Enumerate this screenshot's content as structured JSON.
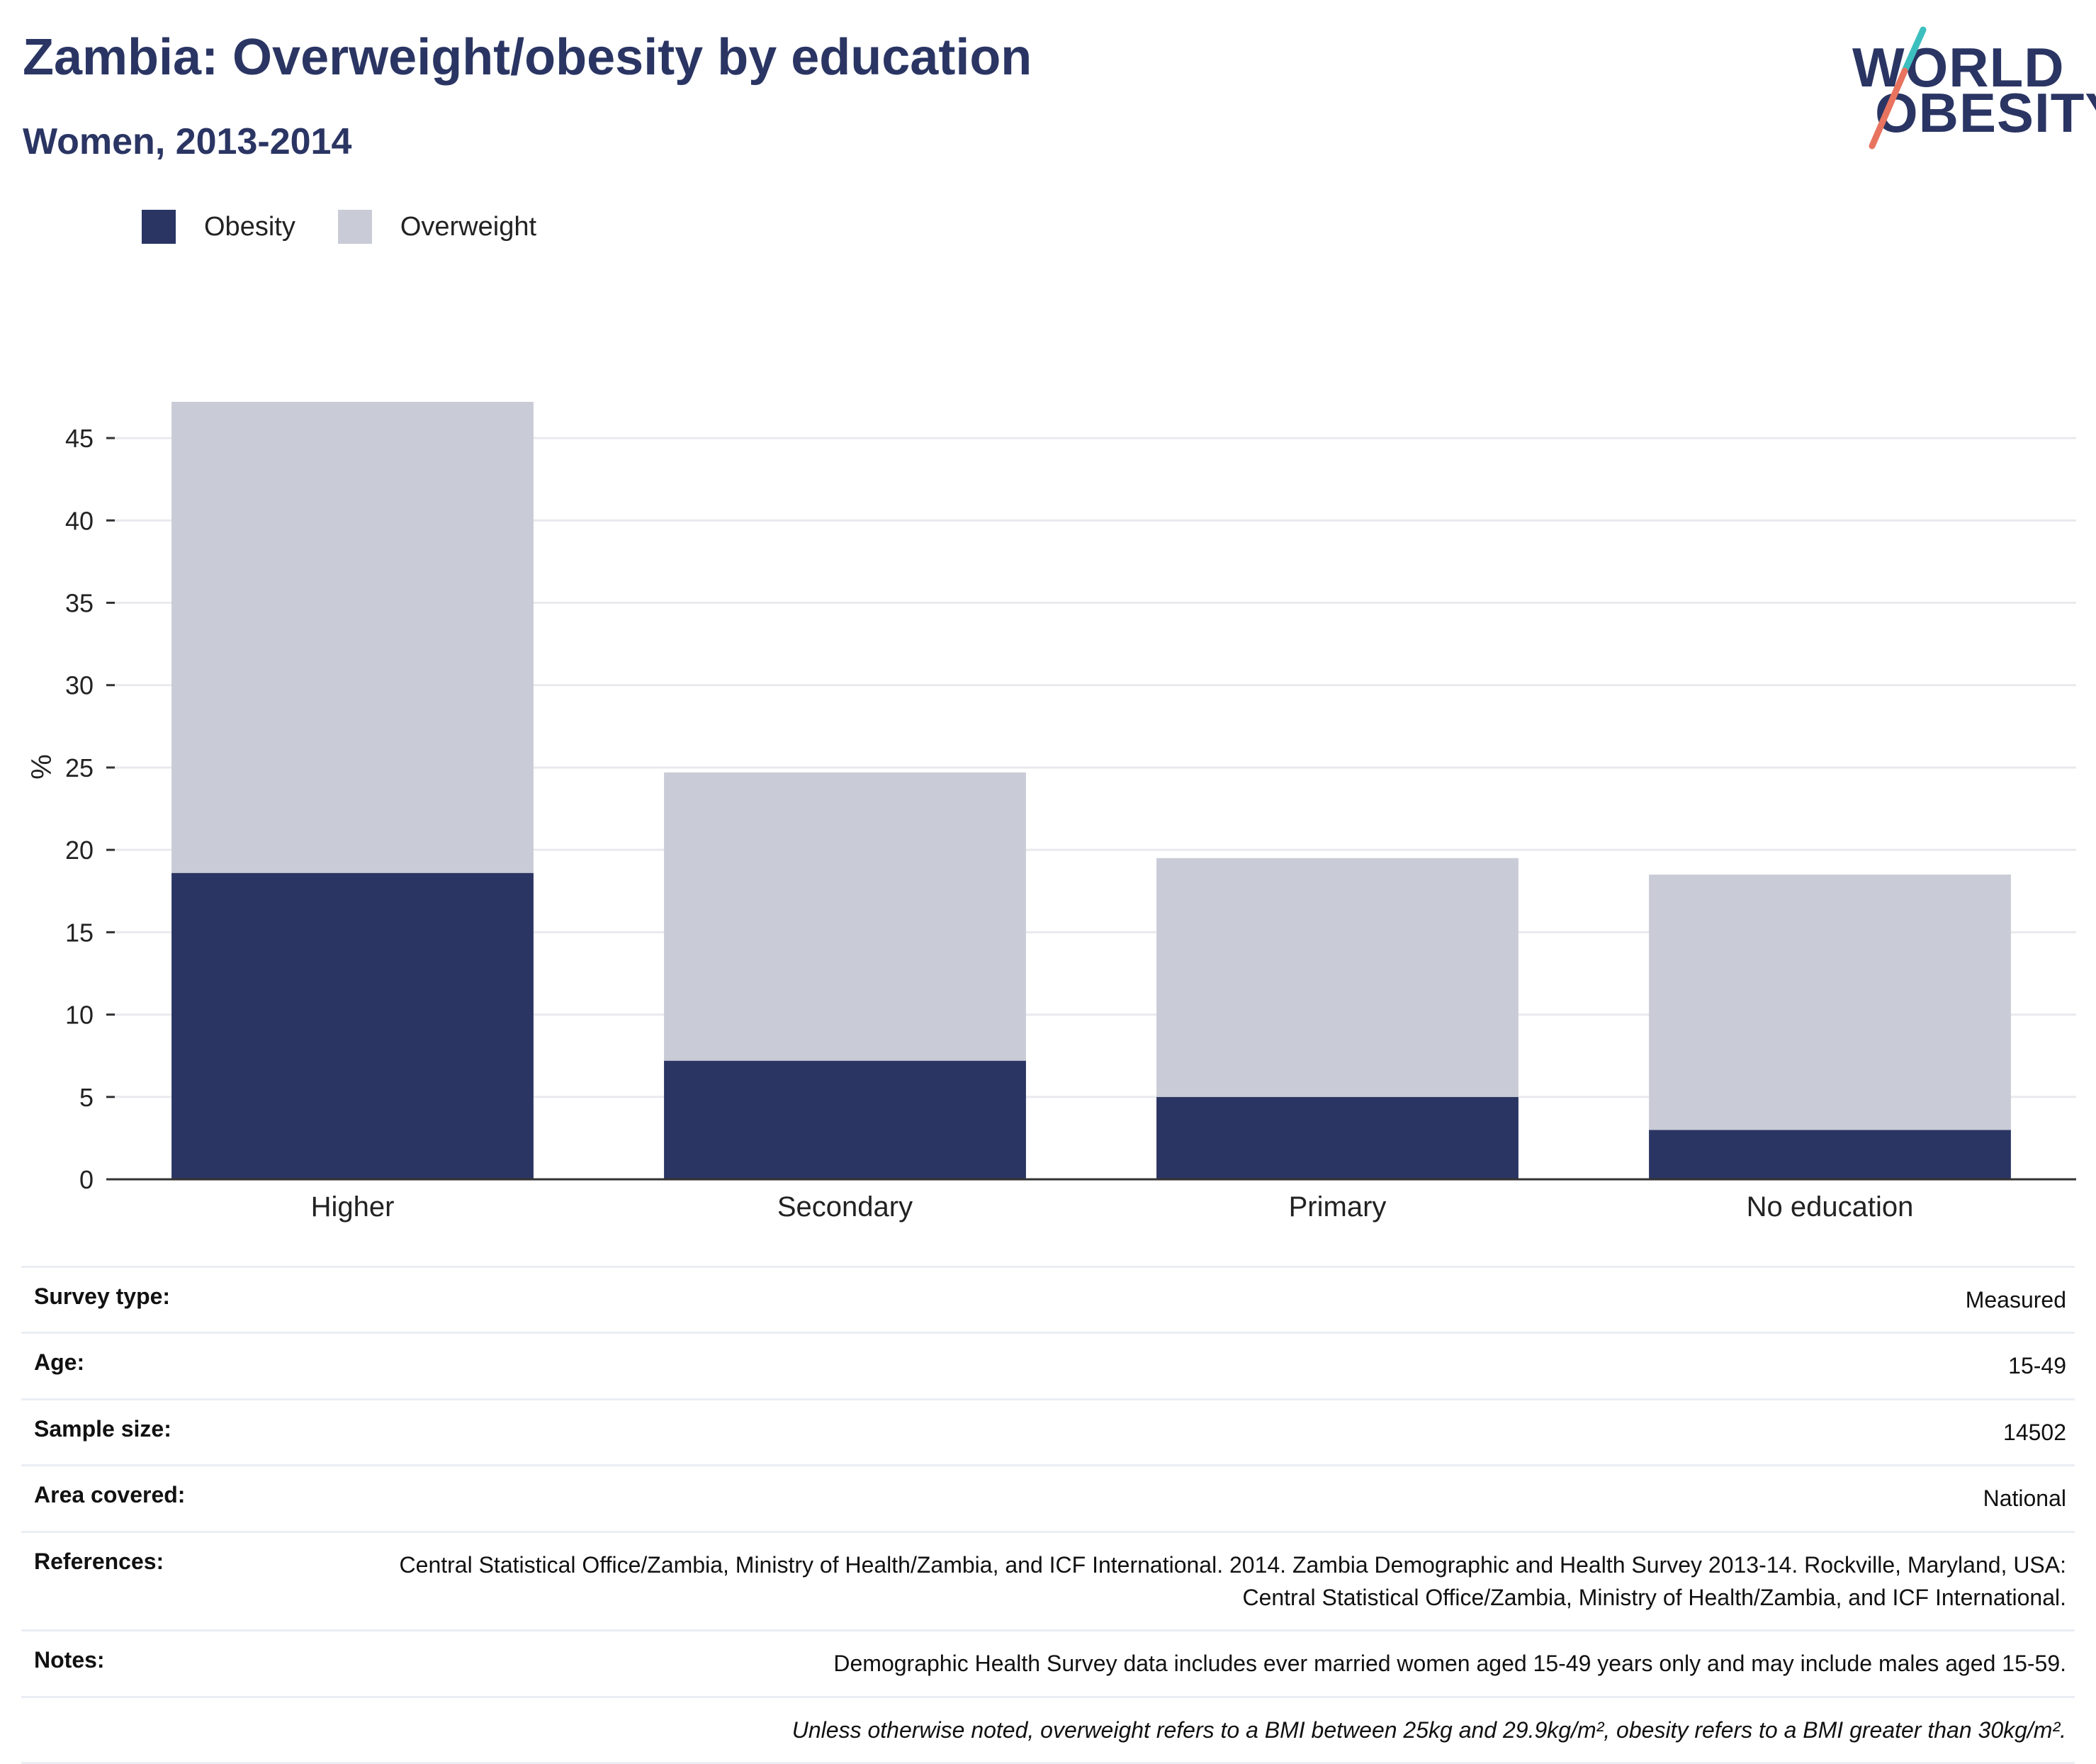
{
  "header": {
    "title": "Zambia: Overweight/obesity by education",
    "subtitle": "Women, 2013-2014"
  },
  "logo": {
    "line1": "WORLD",
    "line2": "OBESITY"
  },
  "colors": {
    "obesity": "#2a3563",
    "overweight": "#c9cbd6",
    "gridline": "#e9eaee",
    "axis": "#333333",
    "logo_teal": "#3dbfbf",
    "logo_coral": "#e8735f"
  },
  "chart_data": {
    "type": "bar",
    "stacked": true,
    "categories": [
      "Higher",
      "Secondary",
      "Primary",
      "No education"
    ],
    "series": [
      {
        "name": "Obesity",
        "values": [
          18.6,
          7.2,
          5.0,
          3.0
        ]
      },
      {
        "name": "Overweight",
        "values": [
          28.6,
          17.5,
          14.5,
          15.5
        ]
      }
    ],
    "ylabel": "%",
    "xlabel": "",
    "ylim": [
      0,
      47.5
    ],
    "yticks": [
      0,
      5,
      10,
      15,
      20,
      25,
      30,
      35,
      40,
      45
    ],
    "grid": true,
    "legend_position": "top-left"
  },
  "info": {
    "rows": [
      {
        "label": "Survey type:",
        "value": "Measured"
      },
      {
        "label": "Age:",
        "value": "15-49"
      },
      {
        "label": "Sample size:",
        "value": "14502"
      },
      {
        "label": "Area covered:",
        "value": "National"
      },
      {
        "label": "References:",
        "value": "Central Statistical Office/Zambia, Ministry of Health/Zambia, and ICF International. 2014. Zambia Demographic and Health Survey 2013-14. Rockville, Maryland, USA: Central Statistical Office/Zambia, Ministry of Health/Zambia, and ICF International."
      },
      {
        "label": "Notes:",
        "value": "Demographic Health Survey data includes ever married women aged 15-49 years only and may include males aged 15-59."
      }
    ],
    "footnote": "Unless otherwise noted, overweight refers to a BMI between 25kg and 29.9kg/m², obesity refers to a BMI greater than 30kg/m²."
  }
}
